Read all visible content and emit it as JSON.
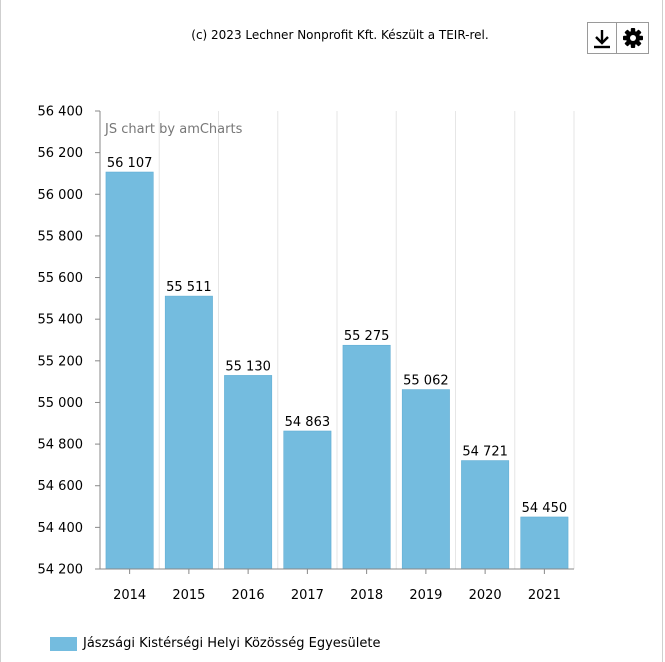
{
  "credit_text": "(c) 2023 Lechner Nonprofit Kft. Készült a TEIR-rel.",
  "watermark": "JS chart by amCharts",
  "toolbar": {
    "download_icon": "download-icon",
    "settings_icon": "gear-icon"
  },
  "colors": {
    "bar": "#74bcdf",
    "bar_edge": "#5aa9d1",
    "axis": "#888888",
    "grid": "#e6e6e6"
  },
  "chart_data": {
    "type": "bar",
    "categories": [
      "2014",
      "2015",
      "2016",
      "2017",
      "2018",
      "2019",
      "2020",
      "2021"
    ],
    "series": [
      {
        "name": "Jászsági Kistérségi Helyi Közösség Egyesülete",
        "values": [
          56107,
          55511,
          55130,
          54863,
          55275,
          55062,
          54721,
          54450
        ],
        "value_labels": [
          "56 107",
          "55 511",
          "55 130",
          "54 863",
          "55 275",
          "55 062",
          "54 721",
          "54 450"
        ]
      }
    ],
    "ylim": [
      54200,
      56400
    ],
    "yticks": [
      54200,
      54400,
      54600,
      54800,
      55000,
      55200,
      55400,
      55600,
      55800,
      56000,
      56200,
      56400
    ],
    "ytick_labels": [
      "54 200",
      "54 400",
      "54 600",
      "54 800",
      "55 000",
      "55 200",
      "55 400",
      "55 600",
      "55 800",
      "56 000",
      "56 200",
      "56 400"
    ],
    "grid": true,
    "legend_position": "bottom-left",
    "title": "",
    "xlabel": "",
    "ylabel": ""
  }
}
